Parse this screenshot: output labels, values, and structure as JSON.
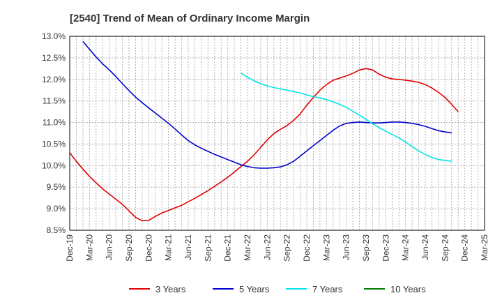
{
  "chart_data": {
    "type": "line",
    "title": "[2540]  Trend of Mean of Ordinary Income Margin",
    "xlabel": "",
    "ylabel": "",
    "x_ticks": [
      "Dec-19",
      "Mar-20",
      "Jun-20",
      "Sep-20",
      "Dec-20",
      "Mar-21",
      "Jun-21",
      "Sep-21",
      "Dec-21",
      "Mar-22",
      "Jun-22",
      "Sep-22",
      "Dec-22",
      "Mar-23",
      "Jun-23",
      "Sep-23",
      "Dec-23",
      "Mar-24",
      "Jun-24",
      "Sep-24",
      "Dec-24",
      "Mar-25"
    ],
    "y_ticks": [
      "8.5%",
      "9.0%",
      "9.5%",
      "10.0%",
      "10.5%",
      "11.0%",
      "11.5%",
      "12.0%",
      "12.5%",
      "13.0%"
    ],
    "ylim": [
      8.5,
      13.0
    ],
    "grid": true,
    "legend_position": "bottom",
    "series": [
      {
        "name": "3 Years",
        "color": "#e00000",
        "points": [
          [
            "Dec-19",
            10.3
          ],
          [
            "Jan-20",
            10.1
          ],
          [
            "Feb-20",
            9.92
          ],
          [
            "Mar-20",
            9.75
          ],
          [
            "Apr-20",
            9.6
          ],
          [
            "May-20",
            9.46
          ],
          [
            "Jun-20",
            9.34
          ],
          [
            "Jul-20",
            9.22
          ],
          [
            "Aug-20",
            9.1
          ],
          [
            "Sep-20",
            8.95
          ],
          [
            "Oct-20",
            8.8
          ],
          [
            "Nov-20",
            8.72
          ],
          [
            "Dec-20",
            8.73
          ],
          [
            "Jan-21",
            8.82
          ],
          [
            "Feb-21",
            8.9
          ],
          [
            "Mar-21",
            8.96
          ],
          [
            "Apr-21",
            9.02
          ],
          [
            "May-21",
            9.08
          ],
          [
            "Jun-21",
            9.16
          ],
          [
            "Jul-21",
            9.24
          ],
          [
            "Aug-21",
            9.33
          ],
          [
            "Sep-21",
            9.42
          ],
          [
            "Oct-21",
            9.52
          ],
          [
            "Nov-21",
            9.62
          ],
          [
            "Dec-21",
            9.73
          ],
          [
            "Jan-22",
            9.85
          ],
          [
            "Feb-22",
            9.98
          ],
          [
            "Mar-22",
            10.1
          ],
          [
            "Apr-22",
            10.25
          ],
          [
            "May-22",
            10.42
          ],
          [
            "Jun-22",
            10.6
          ],
          [
            "Jul-22",
            10.74
          ],
          [
            "Aug-22",
            10.84
          ],
          [
            "Sep-22",
            10.93
          ],
          [
            "Oct-22",
            11.05
          ],
          [
            "Nov-22",
            11.2
          ],
          [
            "Dec-22",
            11.4
          ],
          [
            "Jan-23",
            11.58
          ],
          [
            "Feb-23",
            11.75
          ],
          [
            "Mar-23",
            11.88
          ],
          [
            "Apr-23",
            11.98
          ],
          [
            "May-23",
            12.03
          ],
          [
            "Jun-23",
            12.08
          ],
          [
            "Jul-23",
            12.14
          ],
          [
            "Aug-23",
            12.22
          ],
          [
            "Sep-23",
            12.25
          ],
          [
            "Oct-23",
            12.22
          ],
          [
            "Nov-23",
            12.12
          ],
          [
            "Dec-23",
            12.05
          ],
          [
            "Jan-24",
            12.01
          ],
          [
            "Feb-24",
            12.0
          ],
          [
            "Mar-24",
            11.98
          ],
          [
            "Apr-24",
            11.96
          ],
          [
            "May-24",
            11.93
          ],
          [
            "Jun-24",
            11.88
          ],
          [
            "Jul-24",
            11.8
          ],
          [
            "Aug-24",
            11.7
          ],
          [
            "Sep-24",
            11.58
          ],
          [
            "Oct-24",
            11.42
          ],
          [
            "Nov-24",
            11.25
          ]
        ]
      },
      {
        "name": "5 Years",
        "color": "#0000cc",
        "points": [
          [
            "Feb-20",
            12.88
          ],
          [
            "Mar-20",
            12.7
          ],
          [
            "Apr-20",
            12.52
          ],
          [
            "May-20",
            12.36
          ],
          [
            "Jun-20",
            12.22
          ],
          [
            "Jul-20",
            12.07
          ],
          [
            "Aug-20",
            11.9
          ],
          [
            "Sep-20",
            11.74
          ],
          [
            "Oct-20",
            11.59
          ],
          [
            "Nov-20",
            11.46
          ],
          [
            "Dec-20",
            11.34
          ],
          [
            "Jan-21",
            11.22
          ],
          [
            "Feb-21",
            11.1
          ],
          [
            "Mar-21",
            10.98
          ],
          [
            "Apr-21",
            10.85
          ],
          [
            "May-21",
            10.71
          ],
          [
            "Jun-21",
            10.58
          ],
          [
            "Jul-21",
            10.48
          ],
          [
            "Aug-21",
            10.4
          ],
          [
            "Sep-21",
            10.33
          ],
          [
            "Oct-21",
            10.26
          ],
          [
            "Nov-21",
            10.2
          ],
          [
            "Dec-21",
            10.14
          ],
          [
            "Jan-22",
            10.08
          ],
          [
            "Feb-22",
            10.02
          ],
          [
            "Mar-22",
            9.98
          ],
          [
            "Apr-22",
            9.95
          ],
          [
            "May-22",
            9.94
          ],
          [
            "Jun-22",
            9.94
          ],
          [
            "Jul-22",
            9.95
          ],
          [
            "Aug-22",
            9.97
          ],
          [
            "Sep-22",
            10.02
          ],
          [
            "Oct-22",
            10.1
          ],
          [
            "Nov-22",
            10.22
          ],
          [
            "Dec-22",
            10.34
          ],
          [
            "Jan-23",
            10.46
          ],
          [
            "Feb-23",
            10.58
          ],
          [
            "Mar-23",
            10.7
          ],
          [
            "Apr-23",
            10.82
          ],
          [
            "May-23",
            10.92
          ],
          [
            "Jun-23",
            10.98
          ],
          [
            "Jul-23",
            11.0
          ],
          [
            "Aug-23",
            11.01
          ],
          [
            "Sep-23",
            11.0
          ],
          [
            "Oct-23",
            10.99
          ],
          [
            "Nov-23",
            10.99
          ],
          [
            "Dec-23",
            11.0
          ],
          [
            "Jan-24",
            11.01
          ],
          [
            "Feb-24",
            11.01
          ],
          [
            "Mar-24",
            11.0
          ],
          [
            "Apr-24",
            10.98
          ],
          [
            "May-24",
            10.95
          ],
          [
            "Jun-24",
            10.91
          ],
          [
            "Jul-24",
            10.86
          ],
          [
            "Aug-24",
            10.81
          ],
          [
            "Sep-24",
            10.78
          ],
          [
            "Oct-24",
            10.76
          ]
        ]
      },
      {
        "name": "7 Years",
        "color": "#00e5e5",
        "points": [
          [
            "Feb-22",
            12.15
          ],
          [
            "Mar-22",
            12.05
          ],
          [
            "Apr-22",
            11.97
          ],
          [
            "May-22",
            11.9
          ],
          [
            "Jun-22",
            11.85
          ],
          [
            "Jul-22",
            11.81
          ],
          [
            "Aug-22",
            11.78
          ],
          [
            "Sep-22",
            11.75
          ],
          [
            "Oct-22",
            11.72
          ],
          [
            "Nov-22",
            11.68
          ],
          [
            "Dec-22",
            11.64
          ],
          [
            "Jan-23",
            11.6
          ],
          [
            "Feb-23",
            11.57
          ],
          [
            "Mar-23",
            11.53
          ],
          [
            "Apr-23",
            11.48
          ],
          [
            "May-23",
            11.42
          ],
          [
            "Jun-23",
            11.35
          ],
          [
            "Jul-23",
            11.26
          ],
          [
            "Aug-23",
            11.17
          ],
          [
            "Sep-23",
            11.07
          ],
          [
            "Oct-23",
            10.97
          ],
          [
            "Nov-23",
            10.88
          ],
          [
            "Dec-23",
            10.8
          ],
          [
            "Jan-24",
            10.72
          ],
          [
            "Feb-24",
            10.64
          ],
          [
            "Mar-24",
            10.55
          ],
          [
            "Apr-24",
            10.44
          ],
          [
            "May-24",
            10.34
          ],
          [
            "Jun-24",
            10.26
          ],
          [
            "Jul-24",
            10.19
          ],
          [
            "Aug-24",
            10.14
          ],
          [
            "Sep-24",
            10.12
          ],
          [
            "Oct-24",
            10.1
          ]
        ]
      },
      {
        "name": "10 Years",
        "color": "#008000",
        "points": []
      }
    ]
  }
}
